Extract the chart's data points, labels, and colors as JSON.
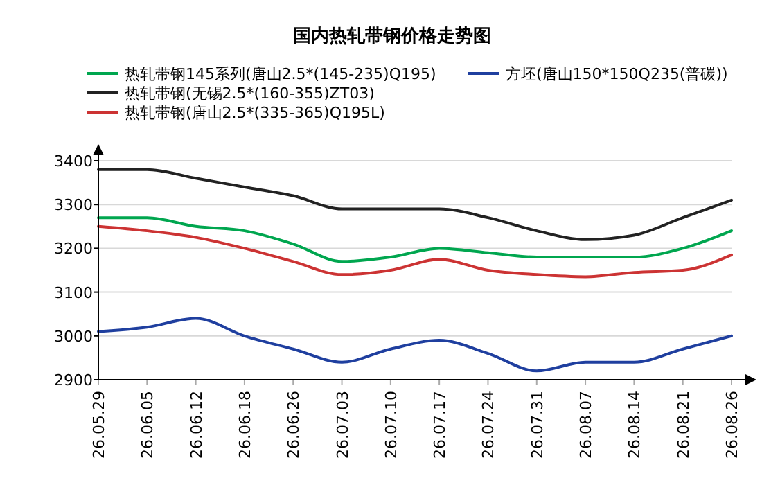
{
  "chart_data": {
    "type": "line",
    "title": "国内热轧带钢价格走势图",
    "categories": [
      "26.05.29",
      "26.06.05",
      "26.06.12",
      "26.06.18",
      "26.06.26",
      "26.07.03",
      "26.07.10",
      "26.07.17",
      "26.07.24",
      "26.07.31",
      "26.08.07",
      "26.08.14",
      "26.08.21",
      "26.08.26"
    ],
    "series": [
      {
        "name": "热轧带钢145系列(唐山2.5*(145-235)Q195)",
        "color": "#00a64f",
        "values": [
          3270,
          3270,
          3250,
          3240,
          3210,
          3170,
          3180,
          3200,
          3190,
          3180,
          3180,
          3180,
          3200,
          3240
        ]
      },
      {
        "name": "方坯(唐山150*150Q235(普碳))",
        "color": "#1f3f9f",
        "values": [
          3010,
          3020,
          3040,
          3000,
          2970,
          2940,
          2970,
          2990,
          2960,
          2920,
          2940,
          2940,
          2970,
          3000
        ]
      },
      {
        "name": "热轧带钢(无锡2.5*(160-355)ZT03)",
        "color": "#222222",
        "values": [
          3380,
          3380,
          3360,
          3340,
          3320,
          3290,
          3290,
          3290,
          3270,
          3240,
          3220,
          3230,
          3270,
          3310
        ]
      },
      {
        "name": "热轧带钢(唐山2.5*(335-365)Q195L)",
        "color": "#cc3333",
        "values": [
          3250,
          3240,
          3225,
          3200,
          3170,
          3140,
          3150,
          3175,
          3150,
          3140,
          3135,
          3145,
          3150,
          3185
        ]
      }
    ],
    "ylim": [
      2900,
      3400
    ],
    "yticks": [
      2900,
      3000,
      3100,
      3200,
      3300,
      3400
    ],
    "grid": "y",
    "legend": "top",
    "marker": "none",
    "line_style": "solid"
  }
}
